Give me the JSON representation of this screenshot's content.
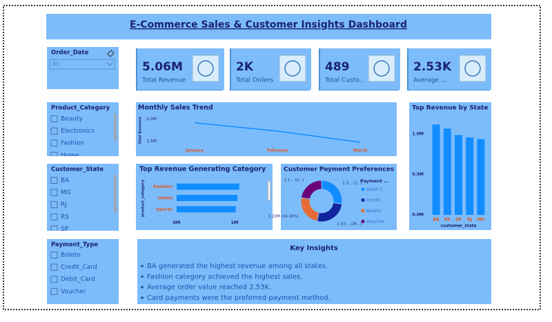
{
  "title": "E-Commerce Sales & Customer Insights Dashboard",
  "slicers": [
    {
      "title": "Order_Date",
      "value": "All"
    },
    {
      "title": "Product_Category",
      "items": [
        "Beauty",
        "Electronics",
        "Fashion",
        "Home"
      ]
    },
    {
      "title": "Customer_State",
      "items": [
        "BA",
        "MG",
        "RJ",
        "RS",
        "SP"
      ]
    },
    {
      "title": "Payment_Type",
      "items": [
        "Boleto",
        "Credit_Card",
        "Debit_Card",
        "Voucher"
      ]
    }
  ],
  "kpis": [
    {
      "value": "5.06M",
      "label": "Total Revenue"
    },
    {
      "value": "2K",
      "label": "Total Orders"
    },
    {
      "value": "489",
      "label": "Total Custo..."
    },
    {
      "value": "2.53K",
      "label": "Average ..."
    }
  ],
  "chart_data": [
    {
      "type": "line",
      "title": "Monthly Sales Trend",
      "y_label": "Total Revenue",
      "categories": [
        "January",
        "February",
        "March"
      ],
      "values": [
        1920000,
        1730000,
        1480000
      ],
      "color": "#118dff",
      "ylim": [
        1400000,
        2100000
      ],
      "yticks": [
        {
          "value": 1500000,
          "label": "1.5M"
        },
        {
          "value": 2000000,
          "label": "2.0M"
        }
      ]
    },
    {
      "type": "hbar",
      "title": "Top Revenue Generating Category",
      "y_label": "product_category",
      "categories": [
        "Fashion",
        "Home",
        "Sports"
      ],
      "values": [
        1080000,
        1050000,
        1020000
      ],
      "color": "#118dff",
      "xlim": [
        0,
        1400000
      ],
      "xticks": [
        {
          "value": 0,
          "label": "0M"
        },
        {
          "value": 1000000,
          "label": "1M"
        }
      ]
    },
    {
      "type": "pie",
      "donut": true,
      "title": "Customer Payment Preferences",
      "legend_title": "Payment ...",
      "categories": [
        "Debit C...",
        "Credit ...",
        "Boleto",
        "Voucher"
      ],
      "values": [
        1.38,
        1.33,
        1.22,
        1.13
      ],
      "value_labels": [
        "1.3... (2...)",
        "1.33... (26...)",
        "1.22M (24.16%)",
        "1.1... (2...)"
      ],
      "colors": [
        "#118dff",
        "#12239e",
        "#e66c37",
        "#6b007b"
      ]
    },
    {
      "type": "bar",
      "title": "Top Revenue by State",
      "x_label": "customer_state",
      "categories": [
        "BA",
        "RS",
        "SP",
        "RJ",
        "MG"
      ],
      "values": [
        1120000,
        1070000,
        990000,
        960000,
        940000
      ],
      "color": "#118dff",
      "ylim": [
        0,
        1250000
      ],
      "yticks": [
        {
          "value": 0,
          "label": "0.0M"
        },
        {
          "value": 500000,
          "label": "0.5M"
        },
        {
          "value": 1000000,
          "label": "1.0M"
        }
      ]
    }
  ],
  "insights": {
    "title": "Key Insights",
    "items": [
      "BA generated the highest revenue among all states.",
      "Fashion category achieved the highest sales.",
      "Average order value reached 2.53K.",
      "Card payments were the preferred payment method."
    ]
  }
}
